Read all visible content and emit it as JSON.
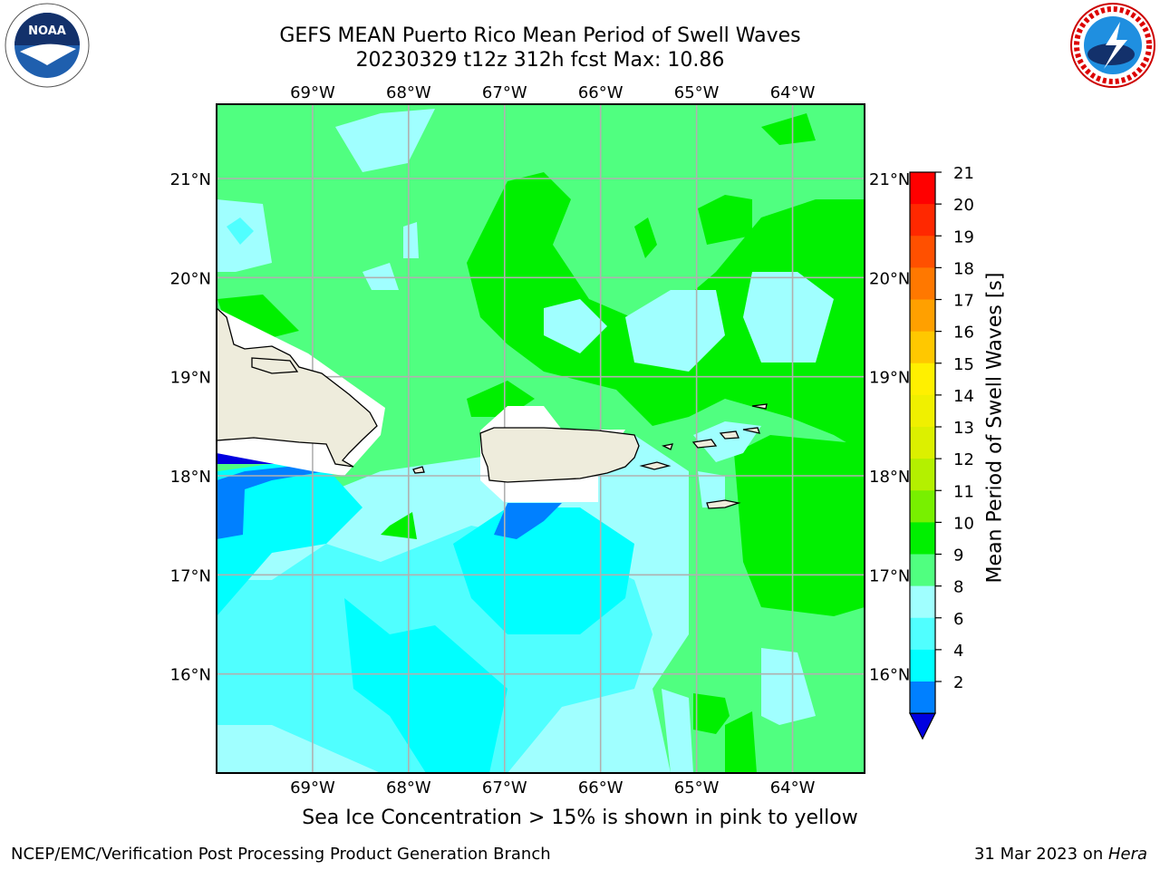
{
  "header": {
    "title_line1": "GEFS MEAN Puerto Rico Mean Period of Swell Waves",
    "title_line2": "20230329 t12z 312h fcst   Max: 10.86"
  },
  "logos": {
    "noaa": {
      "icon": "noaa-logo",
      "text": "NOAA",
      "ring_text": "NATIONAL OCEANIC AND ATMOSPHERIC ADMINISTRATION · U.S. DEPARTMENT OF COMMERCE"
    },
    "nws": {
      "icon": "nws-logo",
      "ring_text": "NATIONAL WEATHER SERVICE"
    }
  },
  "map": {
    "lon_labels": [
      "69°W",
      "68°W",
      "67°W",
      "66°W",
      "65°W",
      "64°W"
    ],
    "lat_labels": [
      "21°N",
      "20°N",
      "19°N",
      "18°N",
      "17°N",
      "16°N"
    ],
    "lon_range": [
      -70.0,
      -63.25
    ],
    "lat_range": [
      15.0,
      21.75
    ],
    "gridlines": true,
    "land_color": "#eeecdc"
  },
  "colorbar": {
    "label": "Mean Period of Swell Waves [s]",
    "ticks": [
      "21",
      "20",
      "19",
      "18",
      "17",
      "16",
      "15",
      "14",
      "13",
      "12",
      "11",
      "10",
      "9",
      "8",
      "6",
      "4",
      "2"
    ],
    "colors_top_to_bottom": [
      "#ff0000",
      "#ff2800",
      "#ff5000",
      "#ff7800",
      "#ffa000",
      "#ffc800",
      "#fff000",
      "#f0f000",
      "#dcf000",
      "#b4f000",
      "#78f000",
      "#00f000",
      "#50ff80",
      "#a0ffff",
      "#50ffff",
      "#00ffff",
      "#0080ff"
    ],
    "under_color": "#0000e0"
  },
  "footer": {
    "note": "Sea Ice Concentration > 15% is shown in pink to yellow",
    "left": "NCEP/EMC/Verification Post Processing Product Generation Branch",
    "right_prefix": "31 Mar 2023 on ",
    "right_host": "Hera"
  }
}
